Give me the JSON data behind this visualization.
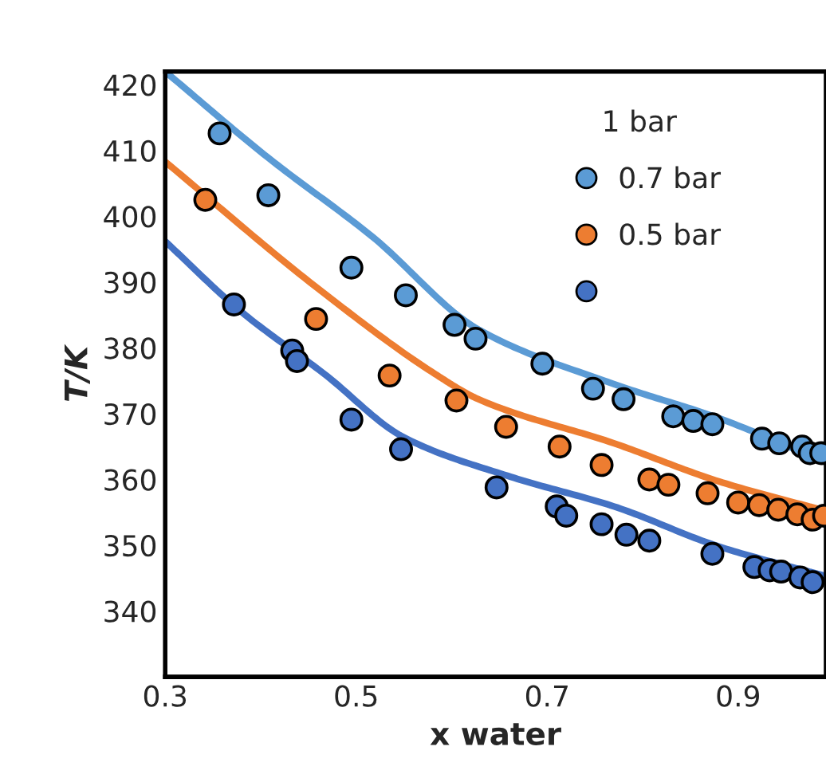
{
  "chart_data": {
    "type": "scatter",
    "xlabel": "x water",
    "ylabel": "T/K",
    "legend_title": "1 bar",
    "legend": "top right",
    "grid": false,
    "xlim": [
      0.3,
      0.992
    ],
    "xticks": [
      0.3,
      0.5,
      0.7,
      0.9
    ],
    "ylim": [
      330,
      422
    ],
    "yticks": [
      340,
      350,
      360,
      370,
      380,
      390,
      400,
      410,
      420
    ],
    "series": [
      {
        "name": "0.7 bar",
        "marker": "circle",
        "color": "#5b9bd5",
        "x": [
          0.357,
          0.408,
          0.495,
          0.552,
          0.603,
          0.625,
          0.695,
          0.748,
          0.78,
          0.832,
          0.853,
          0.873,
          0.925,
          0.943,
          0.967,
          0.975,
          0.987
        ],
        "values": [
          412.6,
          403.2,
          392.2,
          388,
          383.5,
          381.4,
          377.6,
          373.8,
          372.2,
          369.6,
          368.9,
          368.4,
          366.2,
          365.5,
          365,
          364,
          364
        ]
      },
      {
        "name": "0.5 bar",
        "marker": "circle",
        "color": "#ed7d31",
        "x": [
          0.342,
          0.458,
          0.535,
          0.605,
          0.657,
          0.713,
          0.757,
          0.807,
          0.827,
          0.868,
          0.9,
          0.922,
          0.942,
          0.962,
          0.978,
          0.99
        ],
        "values": [
          402.5,
          384.4,
          375.8,
          372,
          368,
          365,
          362.2,
          360,
          359.2,
          357.9,
          356.5,
          356.1,
          355.4,
          354.7,
          353.9,
          354.5
        ]
      },
      {
        "marker": "circle",
        "color": "#4472c4",
        "x": [
          0.372,
          0.433,
          0.438,
          0.495,
          0.547,
          0.647,
          0.71,
          0.72,
          0.757,
          0.783,
          0.807,
          0.873,
          0.917,
          0.933,
          0.945,
          0.965,
          0.978
        ],
        "values": [
          386.6,
          379.6,
          378,
          369.1,
          364.6,
          358.8,
          355.9,
          354.5,
          353.2,
          351.6,
          350.7,
          348.7,
          346.7,
          346.2,
          346,
          345.1,
          344.4
        ]
      },
      {
        "type": "line",
        "marker": "none",
        "color": "#5b9bd5",
        "x": [
          0.3,
          0.407,
          0.517,
          0.628,
          0.77,
          0.88,
          0.992
        ],
        "values": [
          422,
          409,
          396.9,
          382.8,
          374.5,
          369.3,
          362.6
        ]
      },
      {
        "type": "line",
        "marker": "none",
        "color": "#ed7d31",
        "x": [
          0.3,
          0.462,
          0.583,
          0.628,
          0.77,
          0.88,
          0.992
        ],
        "values": [
          408.3,
          388.8,
          376,
          372.2,
          365.5,
          359.7,
          355.2
        ]
      },
      {
        "type": "line",
        "marker": "none",
        "color": "#4472c4",
        "x": [
          0.3,
          0.378,
          0.467,
          0.55,
          0.662,
          0.77,
          0.88,
          0.992
        ],
        "values": [
          396.2,
          385.7,
          376,
          366.4,
          360.4,
          355.9,
          349.8,
          345.3
        ]
      }
    ]
  }
}
